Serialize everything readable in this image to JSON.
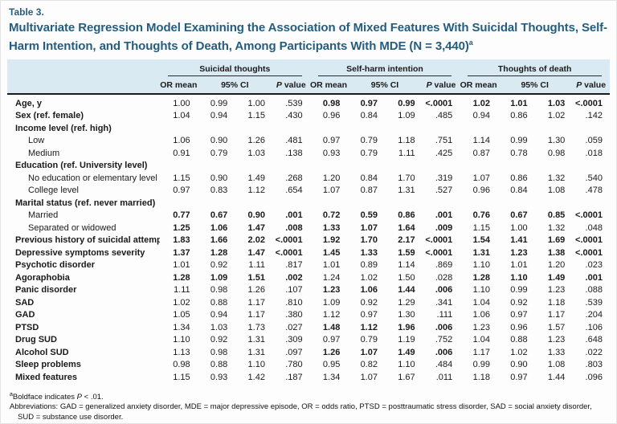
{
  "colors": {
    "accent_blue": "#255d7e",
    "header_bg": "#d9eaf2",
    "bottom_rule": "#517a90"
  },
  "table": {
    "label": "Table 3.",
    "title": "Multivariate Regression Model Examining the Association of Mixed Features With Suicidal Thoughts, Self-Harm Intention, and Thoughts of Death, Among Participants With MDE (N = 3,440)",
    "title_sup": "a",
    "groups": [
      "Suicidal thoughts",
      "Self-harm intention",
      "Thoughts of death"
    ],
    "subheaders": {
      "or_mean": "OR mean",
      "ci": "95% CI",
      "p_italic": "P",
      "p_rest": " value"
    },
    "rows": [
      {
        "label": "Age, y",
        "type": "data",
        "cells": [
          [
            "1.00",
            "0.99",
            "1.00",
            ".539"
          ],
          [
            "0.98",
            "0.97",
            "0.99",
            "<.0001"
          ],
          [
            "1.02",
            "1.01",
            "1.03",
            "<.0001"
          ]
        ],
        "bold": [
          false,
          true,
          true
        ]
      },
      {
        "label": "Sex (ref. female)",
        "type": "data",
        "cells": [
          [
            "1.04",
            "0.94",
            "1.15",
            ".430"
          ],
          [
            "0.96",
            "0.84",
            "1.09",
            ".485"
          ],
          [
            "0.94",
            "0.86",
            "1.02",
            ".142"
          ]
        ],
        "bold": [
          false,
          false,
          false
        ]
      },
      {
        "label": "Income level (ref. high)",
        "type": "section"
      },
      {
        "label": "Low",
        "type": "indent",
        "cells": [
          [
            "1.06",
            "0.90",
            "1.26",
            ".481"
          ],
          [
            "0.97",
            "0.79",
            "1.18",
            ".751"
          ],
          [
            "1.14",
            "0.99",
            "1.30",
            ".059"
          ]
        ],
        "bold": [
          false,
          false,
          false
        ]
      },
      {
        "label": "Medium",
        "type": "indent",
        "cells": [
          [
            "0.91",
            "0.79",
            "1.03",
            ".138"
          ],
          [
            "0.93",
            "0.79",
            "1.11",
            ".425"
          ],
          [
            "0.87",
            "0.78",
            "0.98",
            ".018"
          ]
        ],
        "bold": [
          false,
          false,
          false
        ]
      },
      {
        "label": "Education (ref. University level)",
        "type": "section"
      },
      {
        "label": "No education or elementary level",
        "type": "indent",
        "cells": [
          [
            "1.15",
            "0.90",
            "1.49",
            ".268"
          ],
          [
            "1.20",
            "0.84",
            "1.70",
            ".319"
          ],
          [
            "1.07",
            "0.86",
            "1.32",
            ".540"
          ]
        ],
        "bold": [
          false,
          false,
          false
        ]
      },
      {
        "label": "College level",
        "type": "indent",
        "cells": [
          [
            "0.97",
            "0.83",
            "1.12",
            ".654"
          ],
          [
            "1.07",
            "0.87",
            "1.31",
            ".527"
          ],
          [
            "0.96",
            "0.84",
            "1.08",
            ".478"
          ]
        ],
        "bold": [
          false,
          false,
          false
        ]
      },
      {
        "label": "Marital status (ref. never married)",
        "type": "section"
      },
      {
        "label": "Married",
        "type": "indent",
        "cells": [
          [
            "0.77",
            "0.67",
            "0.90",
            ".001"
          ],
          [
            "0.72",
            "0.59",
            "0.86",
            ".001"
          ],
          [
            "0.76",
            "0.67",
            "0.85",
            "<.0001"
          ]
        ],
        "bold": [
          true,
          true,
          true
        ]
      },
      {
        "label": "Separated or widowed",
        "type": "indent",
        "cells": [
          [
            "1.25",
            "1.06",
            "1.47",
            ".008"
          ],
          [
            "1.33",
            "1.07",
            "1.64",
            ".009"
          ],
          [
            "1.15",
            "1.00",
            "1.32",
            ".048"
          ]
        ],
        "bold": [
          true,
          true,
          false
        ]
      },
      {
        "label": "Previous history of suicidal attempt",
        "type": "data",
        "cells": [
          [
            "1.83",
            "1.66",
            "2.02",
            "<.0001"
          ],
          [
            "1.92",
            "1.70",
            "2.17",
            "<.0001"
          ],
          [
            "1.54",
            "1.41",
            "1.69",
            "<.0001"
          ]
        ],
        "bold": [
          true,
          true,
          true
        ]
      },
      {
        "label": "Depressive symptoms severity",
        "type": "data",
        "cells": [
          [
            "1.37",
            "1.28",
            "1.47",
            "<.0001"
          ],
          [
            "1.45",
            "1.33",
            "1.59",
            "<.0001"
          ],
          [
            "1.31",
            "1.23",
            "1.38",
            "<.0001"
          ]
        ],
        "bold": [
          true,
          true,
          true
        ]
      },
      {
        "label": "Psychotic disorder",
        "type": "data",
        "cells": [
          [
            "1.01",
            "0.92",
            "1.11",
            ".817"
          ],
          [
            "1.01",
            "0.89",
            "1.14",
            ".869"
          ],
          [
            "1.10",
            "1.01",
            "1.20",
            ".023"
          ]
        ],
        "bold": [
          false,
          false,
          false
        ]
      },
      {
        "label": "Agoraphobia",
        "type": "data",
        "cells": [
          [
            "1.28",
            "1.09",
            "1.51",
            ".002"
          ],
          [
            "1.24",
            "1.02",
            "1.50",
            ".028"
          ],
          [
            "1.28",
            "1.10",
            "1.49",
            ".001"
          ]
        ],
        "bold": [
          true,
          false,
          true
        ]
      },
      {
        "label": "Panic disorder",
        "type": "data",
        "cells": [
          [
            "1.11",
            "0.98",
            "1.26",
            ".107"
          ],
          [
            "1.23",
            "1.06",
            "1.44",
            ".006"
          ],
          [
            "1.10",
            "0.99",
            "1.23",
            ".088"
          ]
        ],
        "bold": [
          false,
          true,
          false
        ]
      },
      {
        "label": "SAD",
        "type": "data",
        "cells": [
          [
            "1.02",
            "0.88",
            "1.17",
            ".810"
          ],
          [
            "1.09",
            "0.92",
            "1.29",
            ".341"
          ],
          [
            "1.04",
            "0.92",
            "1.18",
            ".539"
          ]
        ],
        "bold": [
          false,
          false,
          false
        ]
      },
      {
        "label": "GAD",
        "type": "data",
        "cells": [
          [
            "1.05",
            "0.94",
            "1.17",
            ".380"
          ],
          [
            "1.12",
            "0.97",
            "1.30",
            ".111"
          ],
          [
            "1.06",
            "0.97",
            "1.17",
            ".204"
          ]
        ],
        "bold": [
          false,
          false,
          false
        ]
      },
      {
        "label": "PTSD",
        "type": "data",
        "cells": [
          [
            "1.34",
            "1.03",
            "1.73",
            ".027"
          ],
          [
            "1.48",
            "1.12",
            "1.96",
            ".006"
          ],
          [
            "1.23",
            "0.96",
            "1.57",
            ".106"
          ]
        ],
        "bold": [
          false,
          true,
          false
        ]
      },
      {
        "label": "Drug SUD",
        "type": "data",
        "cells": [
          [
            "1.10",
            "0.92",
            "1.31",
            ".309"
          ],
          [
            "0.97",
            "0.79",
            "1.19",
            ".752"
          ],
          [
            "1.04",
            "0.88",
            "1.23",
            ".648"
          ]
        ],
        "bold": [
          false,
          false,
          false
        ]
      },
      {
        "label": "Alcohol SUD",
        "type": "data",
        "cells": [
          [
            "1.13",
            "0.98",
            "1.31",
            ".097"
          ],
          [
            "1.26",
            "1.07",
            "1.49",
            ".006"
          ],
          [
            "1.17",
            "1.02",
            "1.33",
            ".022"
          ]
        ],
        "bold": [
          false,
          true,
          false
        ]
      },
      {
        "label": "Sleep problems",
        "type": "data",
        "cells": [
          [
            "0.98",
            "0.88",
            "1.10",
            ".780"
          ],
          [
            "0.95",
            "0.82",
            "1.10",
            ".484"
          ],
          [
            "0.99",
            "0.90",
            "1.08",
            ".803"
          ]
        ],
        "bold": [
          false,
          false,
          false
        ]
      },
      {
        "label": "Mixed features",
        "type": "data",
        "cells": [
          [
            "1.15",
            "0.93",
            "1.42",
            ".187"
          ],
          [
            "1.34",
            "1.07",
            "1.67",
            ".011"
          ],
          [
            "1.18",
            "0.97",
            "1.44",
            ".096"
          ]
        ],
        "bold": [
          false,
          false,
          false
        ]
      }
    ],
    "footnotes": {
      "fn_a_sup": "a",
      "fn_a_pre": "Boldface indicates ",
      "fn_a_italic": "P",
      "fn_a_post": " < .01.",
      "abbreviations": "Abbreviations: GAD = generalized anxiety disorder, MDE = major depressive episode, OR = odds ratio, PTSD = posttraumatic stress disorder, SAD = social anxiety disorder, SUD = substance use disorder."
    }
  }
}
